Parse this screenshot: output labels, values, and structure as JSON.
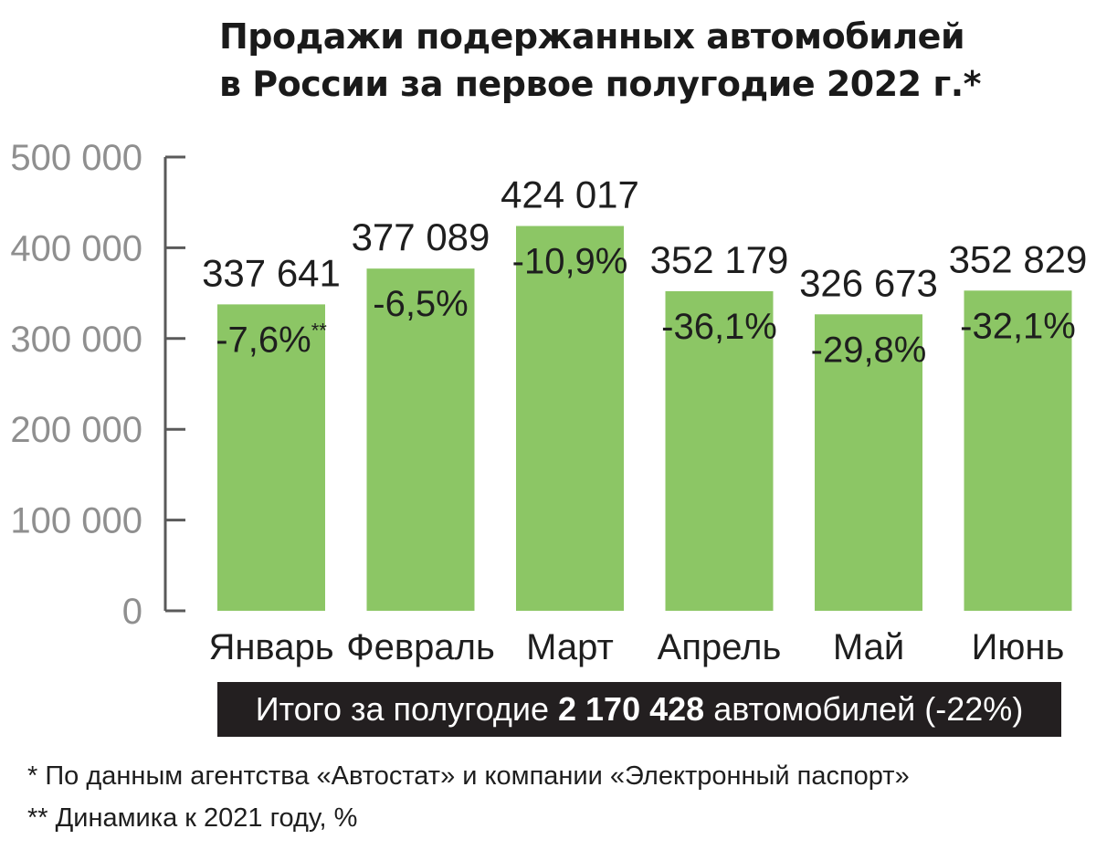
{
  "chart_data": {
    "type": "bar",
    "title_line1": "Продажи подержанных автомобилей",
    "title_line2": "в России за первое полугодие 2022 г.*",
    "categories": [
      "Январь",
      "Февраль",
      "Март",
      "Апрель",
      "Май",
      "Июнь"
    ],
    "values": [
      337641,
      377089,
      424017,
      352179,
      326673,
      352829
    ],
    "value_labels": [
      "337 641",
      "377 089",
      "424 017",
      "352 179",
      "326 673",
      "352 829"
    ],
    "change_labels": [
      "-7,6%",
      "-6,5%",
      "-10,9%",
      "-36,1%",
      "-29,8%",
      "-32,1%"
    ],
    "change_note_marker": "**",
    "ylim": [
      0,
      500000
    ],
    "yticks": [
      0,
      100000,
      200000,
      300000,
      400000,
      500000
    ],
    "ytick_labels": [
      "0",
      "100 000",
      "200 000",
      "300 000",
      "400 000",
      "500 000"
    ],
    "bar_color": "#8cc665",
    "axis_color": "#5a5a5a",
    "grid": false,
    "legend": "none"
  },
  "total": {
    "prefix": "Итого за полугодие",
    "value": "2 170 428",
    "suffix": "автомобилей (-22%)"
  },
  "notes": [
    "* По данным агентства «Автостат» и компании «Электронный паспорт»",
    "** Динамика к 2021 году, %"
  ]
}
